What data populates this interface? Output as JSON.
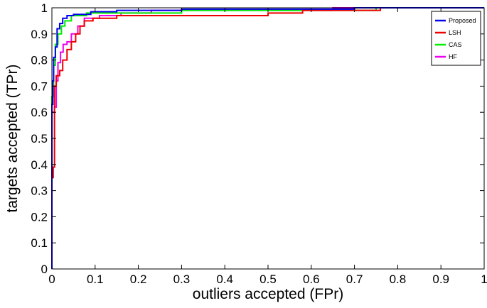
{
  "chart_data": {
    "type": "line",
    "title": "",
    "xlabel": "outliers accepted (FPr)",
    "ylabel": "targets accepted (TPr)",
    "xlim": [
      0,
      1
    ],
    "ylim": [
      0,
      1
    ],
    "xticks": [
      "0",
      "0.1",
      "0.2",
      "0.3",
      "0.4",
      "0.5",
      "0.6",
      "0.7",
      "0.8",
      "0.9",
      "1"
    ],
    "yticks": [
      "0",
      "0.1",
      "0.2",
      "0.3",
      "0.4",
      "0.5",
      "0.6",
      "0.7",
      "0.8",
      "0.9",
      "1"
    ],
    "grid": false,
    "legend_position": "top-right",
    "series": [
      {
        "name": "Proposed",
        "color": "#0000ee",
        "points": [
          [
            0,
            0
          ],
          [
            0,
            0.63
          ],
          [
            0.002,
            0.63
          ],
          [
            0.002,
            0.72
          ],
          [
            0.004,
            0.72
          ],
          [
            0.004,
            0.81
          ],
          [
            0.008,
            0.81
          ],
          [
            0.008,
            0.85
          ],
          [
            0.012,
            0.85
          ],
          [
            0.012,
            0.92
          ],
          [
            0.018,
            0.92
          ],
          [
            0.018,
            0.94
          ],
          [
            0.025,
            0.94
          ],
          [
            0.025,
            0.96
          ],
          [
            0.035,
            0.96
          ],
          [
            0.035,
            0.97
          ],
          [
            0.05,
            0.97
          ],
          [
            0.05,
            0.975
          ],
          [
            0.09,
            0.975
          ],
          [
            0.09,
            0.985
          ],
          [
            0.15,
            0.985
          ],
          [
            0.15,
            0.99
          ],
          [
            0.3,
            0.99
          ],
          [
            0.3,
            0.995
          ],
          [
            0.7,
            0.995
          ],
          [
            0.7,
            1
          ],
          [
            1,
            1
          ]
        ]
      },
      {
        "name": "LSH",
        "color": "#ee0000",
        "points": [
          [
            0,
            0
          ],
          [
            0,
            0.35
          ],
          [
            0.003,
            0.35
          ],
          [
            0.003,
            0.39
          ],
          [
            0.006,
            0.39
          ],
          [
            0.006,
            0.7
          ],
          [
            0.01,
            0.7
          ],
          [
            0.01,
            0.74
          ],
          [
            0.018,
            0.74
          ],
          [
            0.018,
            0.76
          ],
          [
            0.025,
            0.76
          ],
          [
            0.025,
            0.8
          ],
          [
            0.035,
            0.8
          ],
          [
            0.035,
            0.84
          ],
          [
            0.045,
            0.84
          ],
          [
            0.045,
            0.87
          ],
          [
            0.055,
            0.87
          ],
          [
            0.055,
            0.9
          ],
          [
            0.065,
            0.9
          ],
          [
            0.065,
            0.93
          ],
          [
            0.075,
            0.93
          ],
          [
            0.075,
            0.95
          ],
          [
            0.095,
            0.95
          ],
          [
            0.095,
            0.96
          ],
          [
            0.15,
            0.96
          ],
          [
            0.15,
            0.97
          ],
          [
            0.5,
            0.97
          ],
          [
            0.5,
            0.98
          ],
          [
            0.58,
            0.98
          ],
          [
            0.58,
            0.99
          ],
          [
            0.76,
            0.99
          ],
          [
            0.76,
            1
          ],
          [
            1,
            1
          ]
        ]
      },
      {
        "name": "CAS",
        "color": "#00ee00",
        "points": [
          [
            0,
            0
          ],
          [
            0,
            0.66
          ],
          [
            0.004,
            0.66
          ],
          [
            0.004,
            0.78
          ],
          [
            0.008,
            0.78
          ],
          [
            0.008,
            0.86
          ],
          [
            0.014,
            0.86
          ],
          [
            0.014,
            0.9
          ],
          [
            0.022,
            0.9
          ],
          [
            0.022,
            0.93
          ],
          [
            0.03,
            0.93
          ],
          [
            0.03,
            0.95
          ],
          [
            0.045,
            0.95
          ],
          [
            0.045,
            0.97
          ],
          [
            0.08,
            0.97
          ],
          [
            0.08,
            0.98
          ],
          [
            0.3,
            0.98
          ],
          [
            0.3,
            0.99
          ],
          [
            0.75,
            0.99
          ],
          [
            0.75,
            1
          ],
          [
            1,
            1
          ]
        ]
      },
      {
        "name": "HF",
        "color": "#ee00ee",
        "points": [
          [
            0,
            0
          ],
          [
            0,
            0.6
          ],
          [
            0.006,
            0.6
          ],
          [
            0.006,
            0.62
          ],
          [
            0.01,
            0.62
          ],
          [
            0.01,
            0.72
          ],
          [
            0.014,
            0.72
          ],
          [
            0.014,
            0.79
          ],
          [
            0.02,
            0.79
          ],
          [
            0.02,
            0.83
          ],
          [
            0.026,
            0.83
          ],
          [
            0.026,
            0.86
          ],
          [
            0.035,
            0.86
          ],
          [
            0.035,
            0.87
          ],
          [
            0.045,
            0.87
          ],
          [
            0.045,
            0.9
          ],
          [
            0.06,
            0.9
          ],
          [
            0.06,
            0.93
          ],
          [
            0.075,
            0.93
          ],
          [
            0.075,
            0.96
          ],
          [
            0.11,
            0.96
          ],
          [
            0.11,
            0.97
          ],
          [
            0.16,
            0.97
          ],
          [
            0.16,
            0.98
          ],
          [
            0.23,
            0.98
          ],
          [
            0.23,
            0.99
          ],
          [
            0.65,
            0.99
          ],
          [
            0.65,
            1
          ],
          [
            1,
            1
          ]
        ]
      }
    ]
  }
}
